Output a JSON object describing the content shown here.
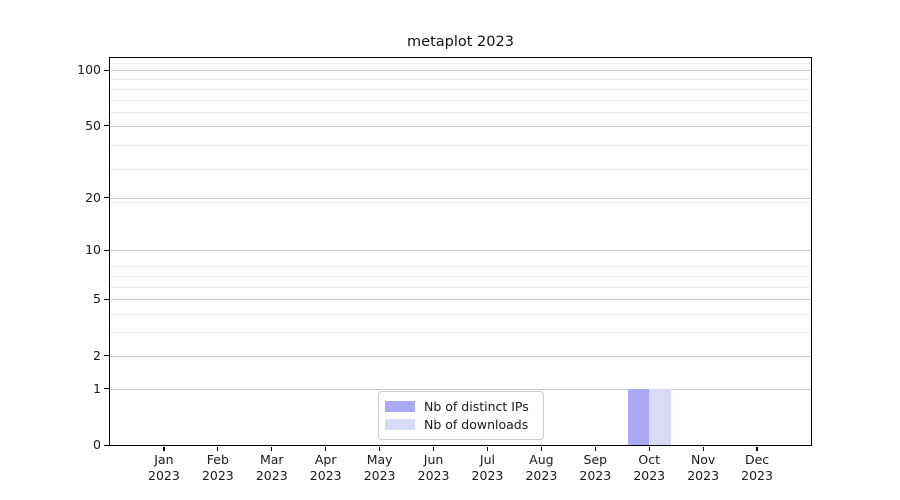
{
  "chart_data": {
    "type": "bar",
    "title": "metaplot 2023",
    "categories": [
      "Jan 2023",
      "Feb 2023",
      "Mar 2023",
      "Apr 2023",
      "May 2023",
      "Jun 2023",
      "Jul 2023",
      "Aug 2023",
      "Sep 2023",
      "Oct 2023",
      "Nov 2023",
      "Dec 2023"
    ],
    "series": [
      {
        "name": "Nb of distinct IPs",
        "color": "#a9a9f4",
        "values": [
          0,
          0,
          0,
          0,
          0,
          0,
          0,
          0,
          0,
          1,
          0,
          0
        ]
      },
      {
        "name": "Nb of downloads",
        "color": "#d9d9f8",
        "values": [
          0,
          0,
          0,
          0,
          0,
          0,
          0,
          0,
          0,
          1,
          0,
          0
        ]
      }
    ],
    "xlabel": "",
    "ylabel": "",
    "yscale": "log1p",
    "ylim": [
      0,
      100
    ],
    "y_ticks": [
      0,
      1,
      2,
      5,
      10,
      20,
      50,
      100
    ],
    "grid": true,
    "legend_position": "inside-bottom-center"
  },
  "colors": {
    "major_grid": "#c8c8c8",
    "minor_grid": "#ececec",
    "spine": "#000000",
    "text": "#1a1a1a",
    "legend_border": "#cccccc"
  }
}
